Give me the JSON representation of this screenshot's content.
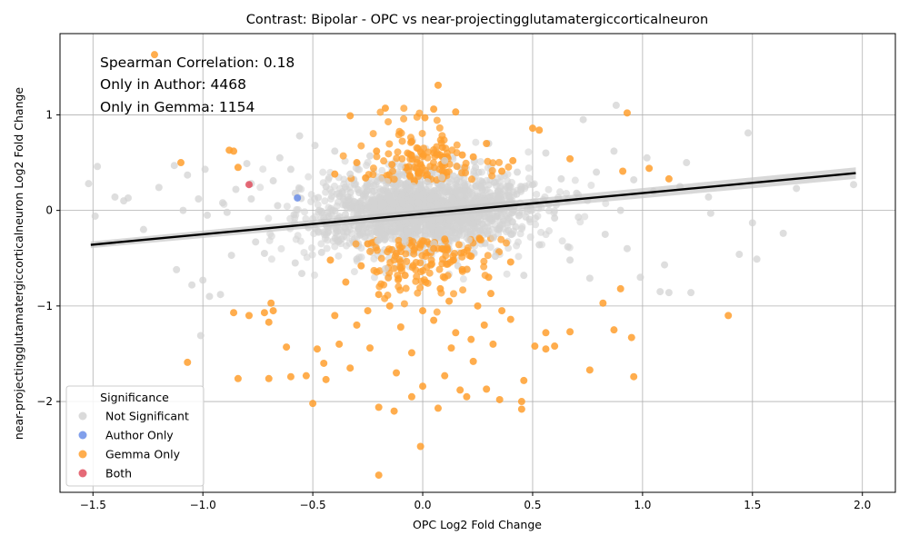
{
  "chart_data": {
    "type": "scatter",
    "title": "Contrast: Bipolar - OPC vs near-projectingglutamatergiccorticalneuron",
    "xlabel": "OPC Log2 Fold Change",
    "ylabel": "near-projectingglutamatergiccorticalneuron Log2 Fold Change",
    "xlim": [
      -1.65,
      2.15
    ],
    "ylim": [
      -2.95,
      1.85
    ],
    "x_ticks": [
      -1.5,
      -1.0,
      -0.5,
      0.0,
      0.5,
      1.0,
      1.5,
      2.0
    ],
    "x_tick_labels": [
      "−1.5",
      "−1.0",
      "−0.5",
      "0.0",
      "0.5",
      "1.0",
      "1.5",
      "2.0"
    ],
    "y_ticks": [
      -2,
      -1,
      0,
      1
    ],
    "y_tick_labels": [
      "−2",
      "−1",
      "0",
      "1"
    ],
    "grid": true,
    "annotations": [
      "Spearman Correlation: 0.18",
      "Only in Author: 4468",
      "Only in Gemma: 1154"
    ],
    "regression": {
      "x": [
        -1.51,
        1.97
      ],
      "y": [
        -0.36,
        0.39
      ]
    },
    "legend": {
      "title": "Significance",
      "placement": "lower-left",
      "entries": [
        {
          "label": "Not Significant",
          "color": "#d3d3d3"
        },
        {
          "label": "Author Only",
          "color": "#6b8ee8"
        },
        {
          "label": "Gemma Only",
          "color": "#ff9f2e"
        },
        {
          "label": "Both",
          "color": "#e0505f"
        }
      ]
    },
    "series": [
      {
        "name": "Not Significant",
        "color": "#d3d3d3",
        "points": [
          [
            -1.52,
            0.28
          ],
          [
            -1.49,
            -0.06
          ],
          [
            -1.48,
            0.46
          ],
          [
            -1.4,
            0.14
          ],
          [
            -1.36,
            0.1
          ],
          [
            -1.34,
            0.13
          ],
          [
            -1.27,
            -0.2
          ],
          [
            -1.2,
            0.24
          ],
          [
            -1.13,
            0.47
          ],
          [
            -1.12,
            -0.62
          ],
          [
            -1.09,
            0.0
          ],
          [
            -1.07,
            0.37
          ],
          [
            -1.05,
            -0.78
          ],
          [
            -1.02,
            0.12
          ],
          [
            -1.0,
            -0.73
          ],
          [
            -0.99,
            0.43
          ],
          [
            -0.98,
            -0.05
          ],
          [
            -0.97,
            -0.9
          ],
          [
            -1.01,
            -1.31
          ],
          [
            -0.91,
            0.08
          ],
          [
            -0.89,
            -0.02
          ],
          [
            -0.87,
            -0.47
          ],
          [
            -0.85,
            0.22
          ],
          [
            -0.8,
            0.49
          ],
          [
            -0.78,
            0.12
          ],
          [
            -0.76,
            -0.33
          ],
          [
            -0.72,
            -0.45
          ],
          [
            -0.68,
            0.31
          ],
          [
            -0.65,
            0.55
          ],
          [
            -0.6,
            0.43
          ],
          [
            -0.58,
            0.18
          ],
          [
            -0.56,
            0.78
          ],
          [
            -0.55,
            -0.66
          ],
          [
            -0.52,
            -0.18
          ],
          [
            -0.49,
            0.68
          ],
          [
            -0.46,
            -0.44
          ],
          [
            -0.44,
            0.25
          ],
          [
            -0.4,
            0.62
          ],
          [
            -0.37,
            -0.3
          ],
          [
            -0.33,
            0.38
          ],
          [
            -0.3,
            -0.51
          ],
          [
            -0.27,
            0.16
          ],
          [
            -0.24,
            0.57
          ],
          [
            -0.22,
            -0.22
          ],
          [
            -0.19,
            0.33
          ],
          [
            -0.17,
            -0.61
          ],
          [
            -0.15,
            0.12
          ],
          [
            -0.12,
            -0.09
          ],
          [
            -0.1,
            0.46
          ],
          [
            -0.08,
            -0.33
          ],
          [
            -0.06,
            0.22
          ],
          [
            -0.04,
            -0.16
          ],
          [
            -0.02,
            0.08
          ],
          [
            0.0,
            -0.04
          ],
          [
            0.02,
            0.3
          ],
          [
            0.04,
            -0.41
          ],
          [
            0.06,
            0.14
          ],
          [
            0.08,
            -0.25
          ],
          [
            0.1,
            0.52
          ],
          [
            0.12,
            -0.07
          ],
          [
            0.14,
            0.36
          ],
          [
            0.16,
            -0.58
          ],
          [
            0.19,
            0.2
          ],
          [
            0.21,
            -0.31
          ],
          [
            0.24,
            0.45
          ],
          [
            0.27,
            -0.14
          ],
          [
            0.3,
            0.7
          ],
          [
            0.33,
            -0.48
          ],
          [
            0.36,
            0.11
          ],
          [
            0.39,
            -0.21
          ],
          [
            0.43,
            0.4
          ],
          [
            0.46,
            -0.68
          ],
          [
            0.5,
            0.27
          ],
          [
            0.53,
            -0.36
          ],
          [
            0.56,
            0.6
          ],
          [
            0.6,
            -0.08
          ],
          [
            0.63,
            0.33
          ],
          [
            0.67,
            -0.52
          ],
          [
            0.7,
            0.18
          ],
          [
            0.73,
            0.95
          ],
          [
            0.76,
            -0.71
          ],
          [
            0.79,
            0.4
          ],
          [
            0.83,
            -0.25
          ],
          [
            0.87,
            0.62
          ],
          [
            0.9,
            0.0
          ],
          [
            0.93,
            -0.4
          ],
          [
            0.96,
            0.32
          ],
          [
            0.99,
            -0.7
          ],
          [
            1.02,
            0.55
          ],
          [
            1.05,
            0.2
          ],
          [
            1.08,
            -0.85
          ],
          [
            1.1,
            -0.57
          ],
          [
            1.12,
            -0.86
          ],
          [
            1.17,
            0.25
          ],
          [
            1.2,
            0.5
          ],
          [
            1.22,
            -0.86
          ],
          [
            1.3,
            0.14
          ],
          [
            1.31,
            -0.03
          ],
          [
            1.44,
            -0.46
          ],
          [
            1.48,
            0.81
          ],
          [
            1.5,
            -0.13
          ],
          [
            1.52,
            -0.51
          ],
          [
            1.64,
            -0.24
          ],
          [
            1.7,
            0.23
          ],
          [
            1.96,
            0.27
          ],
          [
            0.88,
            1.1
          ],
          [
            -0.78,
            0.28
          ],
          [
            -0.92,
            -0.88
          ],
          [
            -0.58,
            -0.55
          ],
          [
            0.66,
            -0.38
          ],
          [
            -0.35,
            0.06
          ],
          [
            0.28,
            0.1
          ],
          [
            0.41,
            -0.02
          ],
          [
            -0.45,
            -0.08
          ],
          [
            0.11,
            0.24
          ],
          [
            -0.66,
            0.05
          ]
        ]
      },
      {
        "name": "Author Only",
        "color": "#6b8ee8",
        "points": [
          [
            -0.57,
            0.13
          ]
        ]
      },
      {
        "name": "Gemma Only",
        "color": "#ff9f2e",
        "points": [
          [
            -1.22,
            1.63
          ],
          [
            0.07,
            1.31
          ],
          [
            -0.17,
            1.07
          ],
          [
            0.05,
            1.06
          ],
          [
            0.15,
            1.03
          ],
          [
            0.93,
            1.02
          ],
          [
            -0.33,
            0.99
          ],
          [
            0.01,
            0.97
          ],
          [
            0.5,
            0.86
          ],
          [
            0.53,
            0.84
          ],
          [
            -0.88,
            0.63
          ],
          [
            -0.86,
            0.62
          ],
          [
            -1.1,
            0.5
          ],
          [
            -0.84,
            0.45
          ],
          [
            0.67,
            0.54
          ],
          [
            0.91,
            0.41
          ],
          [
            1.03,
            0.44
          ],
          [
            1.12,
            0.33
          ],
          [
            -0.3,
            0.5
          ],
          [
            -0.14,
            0.48
          ],
          [
            0.23,
            0.56
          ],
          [
            0.41,
            0.52
          ],
          [
            -0.21,
            0.62
          ],
          [
            0.09,
            0.66
          ],
          [
            0.18,
            0.58
          ],
          [
            -0.05,
            0.72
          ],
          [
            0.29,
            0.7
          ],
          [
            -0.26,
            0.34
          ],
          [
            -0.4,
            0.38
          ],
          [
            0.36,
            0.41
          ],
          [
            -0.69,
            -0.97
          ],
          [
            -0.68,
            -1.05
          ],
          [
            -0.86,
            -1.07
          ],
          [
            -0.79,
            -1.1
          ],
          [
            -0.72,
            -1.07
          ],
          [
            -0.7,
            -1.17
          ],
          [
            -0.84,
            -1.76
          ],
          [
            -1.07,
            -1.59
          ],
          [
            -0.7,
            -1.76
          ],
          [
            -0.6,
            -1.74
          ],
          [
            -0.53,
            -1.73
          ],
          [
            -0.5,
            -2.02
          ],
          [
            -0.44,
            -1.77
          ],
          [
            -0.2,
            -2.06
          ],
          [
            -0.13,
            -2.1
          ],
          [
            -0.01,
            -2.47
          ],
          [
            -0.2,
            -2.77
          ],
          [
            0.07,
            -2.07
          ],
          [
            0.45,
            -2.08
          ],
          [
            0.45,
            -2.0
          ],
          [
            0.29,
            -1.87
          ],
          [
            0.35,
            -1.98
          ],
          [
            0.46,
            -1.78
          ],
          [
            0.96,
            -1.74
          ],
          [
            0.76,
            -1.67
          ],
          [
            0.95,
            -1.33
          ],
          [
            1.39,
            -1.1
          ],
          [
            0.87,
            -1.25
          ],
          [
            0.67,
            -1.27
          ],
          [
            0.6,
            -1.42
          ],
          [
            0.51,
            -1.42
          ],
          [
            0.56,
            -1.28
          ],
          [
            0.56,
            -1.45
          ],
          [
            0.4,
            -1.14
          ],
          [
            0.31,
            -0.87
          ],
          [
            0.32,
            -1.4
          ],
          [
            -0.24,
            -1.44
          ],
          [
            -0.33,
            -1.65
          ],
          [
            -0.48,
            -1.45
          ],
          [
            -0.38,
            -1.4
          ],
          [
            -0.12,
            -1.7
          ],
          [
            0.0,
            -1.84
          ],
          [
            0.17,
            -1.88
          ],
          [
            0.23,
            -1.58
          ],
          [
            0.1,
            -1.73
          ],
          [
            -0.05,
            -1.49
          ],
          [
            0.13,
            -1.44
          ],
          [
            0.22,
            -1.35
          ],
          [
            -0.3,
            -1.2
          ],
          [
            -0.25,
            -1.05
          ],
          [
            -0.1,
            -1.22
          ],
          [
            0.05,
            -1.15
          ],
          [
            0.15,
            -1.28
          ],
          [
            0.28,
            -1.2
          ],
          [
            0.36,
            -1.05
          ],
          [
            -0.4,
            -1.1
          ],
          [
            -0.15,
            -1.0
          ],
          [
            0.0,
            -1.05
          ],
          [
            0.12,
            -0.95
          ],
          [
            0.25,
            -1.0
          ],
          [
            -0.2,
            -0.88
          ],
          [
            0.08,
            -0.82
          ],
          [
            -0.35,
            -0.75
          ],
          [
            0.3,
            -0.7
          ],
          [
            -0.08,
            -0.68
          ],
          [
            0.18,
            -0.62
          ],
          [
            -0.28,
            -0.58
          ],
          [
            -0.42,
            -0.52
          ],
          [
            0.4,
            -0.54
          ],
          [
            -0.12,
            -0.45
          ],
          [
            0.05,
            -0.4
          ],
          [
            0.22,
            -0.48
          ],
          [
            -0.25,
            -0.35
          ],
          [
            0.1,
            -0.3
          ],
          [
            0.82,
            -0.97
          ],
          [
            0.9,
            -0.82
          ],
          [
            -0.62,
            -1.43
          ],
          [
            -0.45,
            -1.6
          ],
          [
            0.2,
            -1.95
          ],
          [
            -0.05,
            -1.95
          ]
        ]
      },
      {
        "name": "Both",
        "color": "#e0505f",
        "points": [
          [
            -0.79,
            0.27
          ]
        ]
      }
    ]
  }
}
